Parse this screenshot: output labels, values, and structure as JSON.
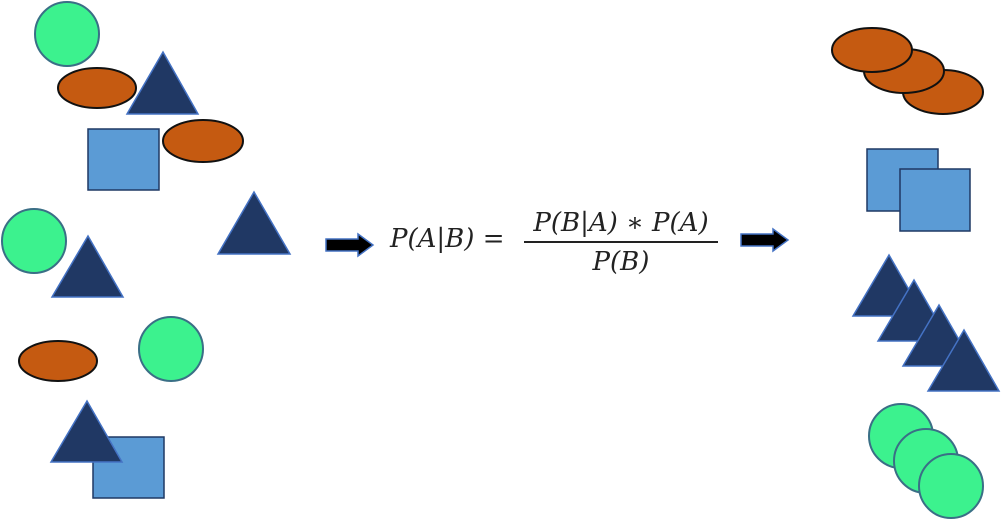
{
  "formula": {
    "lhs": "P(A|B) =",
    "numerator": "P(B|A) ∗ P(A)",
    "denominator": "P(B)"
  },
  "colors": {
    "circle_fill": "#3cf28e",
    "circle_stroke": "#3a6f86",
    "ellipse_fill": "#c55a11",
    "ellipse_stroke": "#111111",
    "triangle_fill": "#203864",
    "triangle_stroke": "#4472c4",
    "square_fill": "#5b9bd5",
    "square_stroke": "#1f3864",
    "arrow_fill": "#000000",
    "arrow_stroke": "#4472c4"
  },
  "groups": {
    "unsorted_shapes": "mixed-shapes",
    "sorted_shapes": [
      "ellipses",
      "squares",
      "triangles",
      "circles"
    ]
  }
}
